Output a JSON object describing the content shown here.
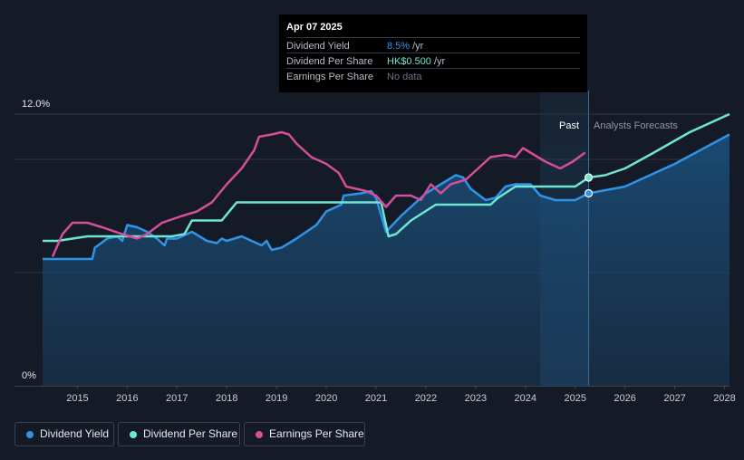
{
  "tooltip": {
    "date": "Apr 07 2025",
    "rows": [
      {
        "label": "Dividend Yield",
        "value": "8.5%",
        "unit": "/yr",
        "color": "#2f94e8"
      },
      {
        "label": "Dividend Per Share",
        "value": "HK$0.500",
        "unit": "/yr",
        "color": "#6ee6d2"
      },
      {
        "label": "Earnings Per Share",
        "value": "No data",
        "unit": "",
        "color": "#6b7280"
      }
    ]
  },
  "regions": {
    "past_label": "Past",
    "forecast_label": "Analysts Forecasts"
  },
  "legend": [
    {
      "label": "Dividend Yield",
      "color": "#2f94e8"
    },
    {
      "label": "Dividend Per Share",
      "color": "#6ee6d2"
    },
    {
      "label": "Earnings Per Share",
      "color": "#d44e9a"
    }
  ],
  "chart_data": {
    "type": "line",
    "y_tick_labels": [
      "12.0%",
      "0%"
    ],
    "ylim": [
      0,
      12
    ],
    "xlim": [
      2014.3,
      2028.1
    ],
    "x_ticks": [
      2015,
      2016,
      2017,
      2018,
      2019,
      2020,
      2021,
      2022,
      2023,
      2024,
      2025,
      2026,
      2027,
      2028
    ],
    "past_forecast_divider": 2025.27,
    "past_band_start": 2024.3,
    "grid": true,
    "series": [
      {
        "name": "Dividend Yield",
        "color": "#2f94e8",
        "fill": true,
        "marker_at": 2025.27,
        "points": [
          [
            2014.3,
            5.6
          ],
          [
            2015.3,
            5.6
          ],
          [
            2015.35,
            6.1
          ],
          [
            2015.6,
            6.5
          ],
          [
            2015.8,
            6.6
          ],
          [
            2015.9,
            6.4
          ],
          [
            2016.0,
            7.1
          ],
          [
            2016.2,
            7.0
          ],
          [
            2016.4,
            6.8
          ],
          [
            2016.6,
            6.5
          ],
          [
            2016.75,
            6.2
          ],
          [
            2016.8,
            6.5
          ],
          [
            2017.0,
            6.5
          ],
          [
            2017.3,
            6.8
          ],
          [
            2017.6,
            6.4
          ],
          [
            2017.8,
            6.3
          ],
          [
            2017.9,
            6.5
          ],
          [
            2018.0,
            6.4
          ],
          [
            2018.3,
            6.6
          ],
          [
            2018.5,
            6.4
          ],
          [
            2018.7,
            6.2
          ],
          [
            2018.8,
            6.4
          ],
          [
            2018.9,
            6.0
          ],
          [
            2019.1,
            6.1
          ],
          [
            2019.4,
            6.5
          ],
          [
            2019.8,
            7.1
          ],
          [
            2020.0,
            7.7
          ],
          [
            2020.3,
            8.0
          ],
          [
            2020.35,
            8.4
          ],
          [
            2020.7,
            8.5
          ],
          [
            2020.9,
            8.6
          ],
          [
            2021.0,
            8.3
          ],
          [
            2021.2,
            6.8
          ],
          [
            2021.5,
            7.5
          ],
          [
            2021.8,
            8.1
          ],
          [
            2022.0,
            8.5
          ],
          [
            2022.3,
            8.9
          ],
          [
            2022.6,
            9.3
          ],
          [
            2022.75,
            9.2
          ],
          [
            2022.9,
            8.7
          ],
          [
            2023.2,
            8.2
          ],
          [
            2023.4,
            8.3
          ],
          [
            2023.6,
            8.8
          ],
          [
            2023.8,
            8.9
          ],
          [
            2024.1,
            8.9
          ],
          [
            2024.3,
            8.4
          ],
          [
            2024.6,
            8.2
          ],
          [
            2025.0,
            8.2
          ],
          [
            2025.27,
            8.5
          ],
          [
            2026.0,
            8.8
          ],
          [
            2027.0,
            9.8
          ],
          [
            2028.1,
            11.1
          ]
        ]
      },
      {
        "name": "Dividend Per Share",
        "color": "#6ee6d2",
        "fill": false,
        "marker_at": 2025.27,
        "points": [
          [
            2014.3,
            6.4
          ],
          [
            2014.6,
            6.4
          ],
          [
            2015.2,
            6.6
          ],
          [
            2016.9,
            6.6
          ],
          [
            2017.15,
            6.7
          ],
          [
            2017.3,
            7.3
          ],
          [
            2017.9,
            7.3
          ],
          [
            2018.2,
            8.1
          ],
          [
            2021.1,
            8.1
          ],
          [
            2021.25,
            6.6
          ],
          [
            2021.4,
            6.7
          ],
          [
            2021.7,
            7.3
          ],
          [
            2022.2,
            8.0
          ],
          [
            2023.3,
            8.0
          ],
          [
            2023.45,
            8.3
          ],
          [
            2023.8,
            8.8
          ],
          [
            2025.0,
            8.8
          ],
          [
            2025.27,
            9.2
          ],
          [
            2025.6,
            9.3
          ],
          [
            2026.0,
            9.6
          ],
          [
            2026.5,
            10.2
          ],
          [
            2027.3,
            11.2
          ],
          [
            2028.1,
            12.0
          ]
        ]
      },
      {
        "name": "Earnings Per Share",
        "color": "#d44e9a",
        "fill": false,
        "points": [
          [
            2014.5,
            5.7
          ],
          [
            2014.7,
            6.7
          ],
          [
            2014.9,
            7.2
          ],
          [
            2015.2,
            7.2
          ],
          [
            2015.5,
            7.0
          ],
          [
            2015.9,
            6.7
          ],
          [
            2016.2,
            6.5
          ],
          [
            2016.4,
            6.7
          ],
          [
            2016.7,
            7.2
          ],
          [
            2017.1,
            7.5
          ],
          [
            2017.4,
            7.7
          ],
          [
            2017.7,
            8.1
          ],
          [
            2018.0,
            8.9
          ],
          [
            2018.3,
            9.6
          ],
          [
            2018.55,
            10.4
          ],
          [
            2018.65,
            11.0
          ],
          [
            2018.9,
            11.1
          ],
          [
            2019.1,
            11.2
          ],
          [
            2019.25,
            11.1
          ],
          [
            2019.4,
            10.7
          ],
          [
            2019.7,
            10.1
          ],
          [
            2020.0,
            9.8
          ],
          [
            2020.25,
            9.4
          ],
          [
            2020.4,
            8.8
          ],
          [
            2020.6,
            8.7
          ],
          [
            2020.8,
            8.6
          ],
          [
            2021.0,
            8.4
          ],
          [
            2021.2,
            7.9
          ],
          [
            2021.4,
            8.4
          ],
          [
            2021.7,
            8.4
          ],
          [
            2021.9,
            8.2
          ],
          [
            2022.1,
            8.9
          ],
          [
            2022.3,
            8.5
          ],
          [
            2022.5,
            8.9
          ],
          [
            2022.8,
            9.1
          ],
          [
            2023.0,
            9.5
          ],
          [
            2023.3,
            10.1
          ],
          [
            2023.6,
            10.2
          ],
          [
            2023.8,
            10.1
          ],
          [
            2023.95,
            10.5
          ],
          [
            2024.1,
            10.3
          ],
          [
            2024.4,
            9.9
          ],
          [
            2024.7,
            9.6
          ],
          [
            2024.95,
            9.9
          ],
          [
            2025.2,
            10.3
          ]
        ]
      }
    ]
  }
}
